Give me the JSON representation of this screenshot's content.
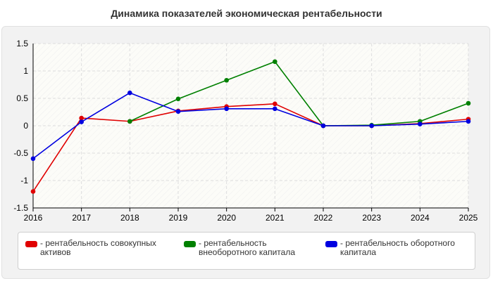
{
  "chart_data": {
    "type": "line",
    "title": "Динамика показателей экономическая рентабельности",
    "xlabel": "",
    "ylabel": "",
    "x": [
      "2016",
      "2017",
      "2018",
      "2019",
      "2020",
      "2021",
      "2022",
      "2023",
      "2024",
      "2025"
    ],
    "y_ticks": [
      "1.5",
      "1",
      "0.5",
      "0",
      "-0.5",
      "-1",
      "-1.5"
    ],
    "ylim": [
      -1.5,
      1.5
    ],
    "grid": true,
    "legend_position": "bottom",
    "series": [
      {
        "name": "- рентабельность совокупных активов",
        "color": "#e00000",
        "values": [
          -1.2,
          0.14,
          0.08,
          0.27,
          0.35,
          0.4,
          0.0,
          0.0,
          0.04,
          0.12
        ]
      },
      {
        "name": "- рентабельность внеоборотного капитала",
        "color": "#008000",
        "values": [
          null,
          null,
          0.08,
          0.49,
          0.83,
          1.17,
          0.0,
          0.01,
          0.08,
          0.41
        ]
      },
      {
        "name": "- рентабельность оборотного капитала",
        "color": "#0000e0",
        "values": [
          -0.6,
          0.07,
          0.6,
          0.26,
          0.31,
          0.31,
          0.0,
          0.0,
          0.03,
          0.08
        ]
      }
    ]
  }
}
